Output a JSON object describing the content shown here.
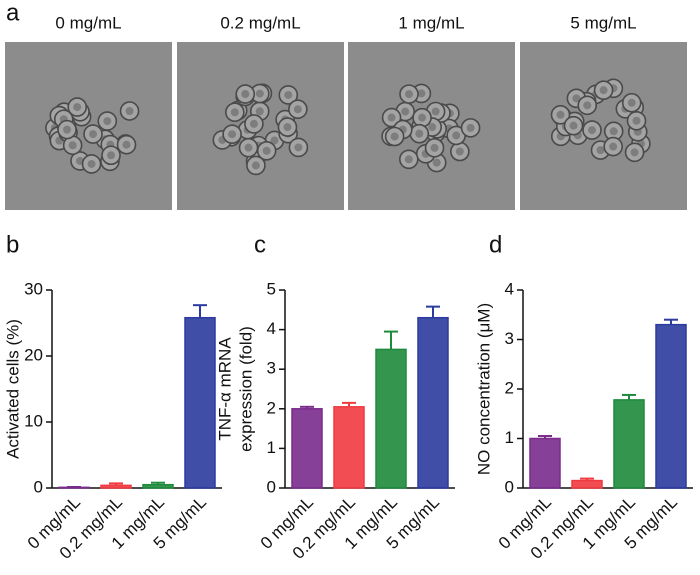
{
  "figure_label": "a",
  "images": [
    {
      "label": "0 mg/mL"
    },
    {
      "label": "0.2 mg/mL"
    },
    {
      "label": "1 mg/mL"
    },
    {
      "label": "5 mg/mL"
    }
  ],
  "chart_data": [
    {
      "type": "bar",
      "label": "b",
      "ylabel": [
        "Activated cells (%)"
      ],
      "categories": [
        "0 mg/mL",
        "0.2 mg/mL",
        "1 mg/mL",
        "5 mg/mL"
      ],
      "values": [
        0.1,
        0.4,
        0.5,
        25.8
      ],
      "errors": [
        0.05,
        0.3,
        0.3,
        1.9
      ],
      "colors": [
        "#7a2b8c",
        "#f03a40",
        "#1e8a3c",
        "#2b3b9e"
      ],
      "ylim": [
        0,
        30
      ],
      "yticks": [
        0,
        10,
        20,
        30
      ]
    },
    {
      "type": "bar",
      "label": "c",
      "ylabel": [
        "TNF-α mRNA",
        "expression (fold)"
      ],
      "categories": [
        "0 mg/mL",
        "0.2 mg/mL",
        "1 mg/mL",
        "5 mg/mL"
      ],
      "values": [
        2.0,
        2.05,
        3.5,
        4.3
      ],
      "errors": [
        0.05,
        0.1,
        0.45,
        0.28
      ],
      "colors": [
        "#7a2b8c",
        "#f03a40",
        "#1e8a3c",
        "#2b3b9e"
      ],
      "ylim": [
        0,
        5
      ],
      "yticks": [
        0,
        1,
        2,
        3,
        4,
        5
      ]
    },
    {
      "type": "bar",
      "label": "d",
      "ylabel": [
        "NO concentration (μM)"
      ],
      "categories": [
        "0 mg/mL",
        "0.2 mg/mL",
        "1 mg/mL",
        "5 mg/mL"
      ],
      "values": [
        1.0,
        0.15,
        1.78,
        3.3
      ],
      "errors": [
        0.05,
        0.04,
        0.1,
        0.1
      ],
      "colors": [
        "#7a2b8c",
        "#f03a40",
        "#1e8a3c",
        "#2b3b9e"
      ],
      "ylim": [
        0,
        4
      ],
      "yticks": [
        0,
        1,
        2,
        3,
        4
      ]
    }
  ]
}
